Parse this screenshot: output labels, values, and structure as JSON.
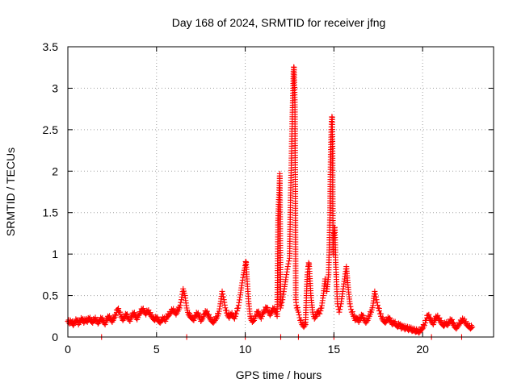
{
  "chart_data": {
    "type": "scatter",
    "title": "Day 168 of 2024, SRMTID for receiver jfng",
    "xlabel": "GPS time / hours",
    "ylabel": "SRMTID / TECUs",
    "xlim": [
      0,
      24
    ],
    "ylim": [
      0,
      3.5
    ],
    "xticks": [
      0,
      5,
      10,
      15,
      20
    ],
    "xtick_labels": [
      "0",
      "5",
      "10",
      "15",
      "20"
    ],
    "yticks": [
      0,
      0.5,
      1,
      1.5,
      2,
      2.5,
      3,
      3.5
    ],
    "ytick_labels": [
      "0",
      "0.5",
      "1",
      "1.5",
      "2",
      "2.5",
      "3",
      "3.5"
    ],
    "grid": true,
    "marker": "plus",
    "color": "#ff0000",
    "series": [
      {
        "name": "SRMTID",
        "points": [
          [
            0.0,
            0.19
          ],
          [
            0.1,
            0.16
          ],
          [
            0.2,
            0.18
          ],
          [
            0.3,
            0.14
          ],
          [
            0.4,
            0.17
          ],
          [
            0.5,
            0.2
          ],
          [
            0.6,
            0.15
          ],
          [
            0.7,
            0.19
          ],
          [
            0.8,
            0.21
          ],
          [
            0.9,
            0.17
          ],
          [
            1.0,
            0.2
          ],
          [
            1.1,
            0.18
          ],
          [
            1.2,
            0.22
          ],
          [
            1.3,
            0.19
          ],
          [
            1.4,
            0.17
          ],
          [
            1.5,
            0.21
          ],
          [
            1.6,
            0.2
          ],
          [
            1.7,
            0.16
          ],
          [
            1.8,
            0.19
          ],
          [
            1.9,
            0.22
          ],
          [
            2.0,
            0.18
          ],
          [
            2.1,
            0.15
          ],
          [
            2.2,
            0.2
          ],
          [
            2.3,
            0.24
          ],
          [
            2.4,
            0.21
          ],
          [
            2.5,
            0.18
          ],
          [
            2.6,
            0.22
          ],
          [
            2.7,
            0.26
          ],
          [
            2.8,
            0.33
          ],
          [
            2.9,
            0.3
          ],
          [
            3.0,
            0.24
          ],
          [
            3.1,
            0.2
          ],
          [
            3.2,
            0.23
          ],
          [
            3.3,
            0.27
          ],
          [
            3.4,
            0.22
          ],
          [
            3.5,
            0.19
          ],
          [
            3.6,
            0.24
          ],
          [
            3.7,
            0.28
          ],
          [
            3.8,
            0.25
          ],
          [
            3.9,
            0.21
          ],
          [
            4.0,
            0.26
          ],
          [
            4.1,
            0.29
          ],
          [
            4.2,
            0.33
          ],
          [
            4.3,
            0.3
          ],
          [
            4.4,
            0.27
          ],
          [
            4.5,
            0.31
          ],
          [
            4.6,
            0.28
          ],
          [
            4.7,
            0.25
          ],
          [
            4.8,
            0.22
          ],
          [
            4.9,
            0.2
          ],
          [
            5.0,
            0.23
          ],
          [
            5.1,
            0.19
          ],
          [
            5.2,
            0.17
          ],
          [
            5.3,
            0.2
          ],
          [
            5.4,
            0.22
          ],
          [
            5.5,
            0.19
          ],
          [
            5.6,
            0.24
          ],
          [
            5.7,
            0.26
          ],
          [
            5.8,
            0.29
          ],
          [
            5.9,
            0.32
          ],
          [
            6.0,
            0.3
          ],
          [
            6.1,
            0.27
          ],
          [
            6.2,
            0.31
          ],
          [
            6.3,
            0.35
          ],
          [
            6.4,
            0.45
          ],
          [
            6.5,
            0.58
          ],
          [
            6.6,
            0.5
          ],
          [
            6.7,
            0.35
          ],
          [
            6.8,
            0.27
          ],
          [
            6.9,
            0.24
          ],
          [
            7.0,
            0.22
          ],
          [
            7.1,
            0.2
          ],
          [
            7.2,
            0.25
          ],
          [
            7.3,
            0.28
          ],
          [
            7.4,
            0.24
          ],
          [
            7.5,
            0.19
          ],
          [
            7.6,
            0.22
          ],
          [
            7.7,
            0.27
          ],
          [
            7.8,
            0.3
          ],
          [
            7.9,
            0.26
          ],
          [
            8.0,
            0.22
          ],
          [
            8.1,
            0.19
          ],
          [
            8.2,
            0.17
          ],
          [
            8.3,
            0.2
          ],
          [
            8.4,
            0.23
          ],
          [
            8.5,
            0.28
          ],
          [
            8.6,
            0.4
          ],
          [
            8.7,
            0.55
          ],
          [
            8.8,
            0.45
          ],
          [
            8.9,
            0.32
          ],
          [
            9.0,
            0.26
          ],
          [
            9.1,
            0.23
          ],
          [
            9.2,
            0.27
          ],
          [
            9.3,
            0.25
          ],
          [
            9.4,
            0.22
          ],
          [
            9.5,
            0.28
          ],
          [
            9.6,
            0.35
          ],
          [
            9.7,
            0.48
          ],
          [
            9.8,
            0.62
          ],
          [
            9.9,
            0.75
          ],
          [
            10.0,
            0.86
          ],
          [
            10.05,
            0.9
          ],
          [
            10.1,
            0.7
          ],
          [
            10.2,
            0.4
          ],
          [
            10.3,
            0.22
          ],
          [
            10.4,
            0.18
          ],
          [
            10.5,
            0.2
          ],
          [
            10.6,
            0.25
          ],
          [
            10.7,
            0.3
          ],
          [
            10.8,
            0.26
          ],
          [
            10.9,
            0.22
          ],
          [
            11.0,
            0.28
          ],
          [
            11.1,
            0.31
          ],
          [
            11.2,
            0.35
          ],
          [
            11.3,
            0.3
          ],
          [
            11.4,
            0.26
          ],
          [
            11.5,
            0.3
          ],
          [
            11.6,
            0.34
          ],
          [
            11.7,
            0.3
          ],
          [
            11.8,
            0.25
          ],
          [
            11.85,
            1.38
          ],
          [
            11.88,
            1.6
          ],
          [
            11.92,
            1.8
          ],
          [
            11.95,
            1.97
          ],
          [
            12.0,
            0.35
          ],
          [
            12.1,
            0.45
          ],
          [
            12.2,
            0.58
          ],
          [
            12.3,
            0.72
          ],
          [
            12.4,
            0.85
          ],
          [
            12.5,
            0.95
          ],
          [
            12.55,
            1.62
          ],
          [
            12.6,
            2.1
          ],
          [
            12.62,
            2.33
          ],
          [
            12.65,
            2.6
          ],
          [
            12.68,
            2.85
          ],
          [
            12.7,
            3.0
          ],
          [
            12.72,
            3.2
          ],
          [
            12.75,
            3.25
          ],
          [
            12.8,
            2.8
          ],
          [
            12.85,
            0.45
          ],
          [
            12.9,
            0.35
          ],
          [
            13.0,
            0.3
          ],
          [
            13.1,
            0.2
          ],
          [
            13.2,
            0.15
          ],
          [
            13.3,
            0.12
          ],
          [
            13.4,
            0.15
          ],
          [
            13.45,
            0.5
          ],
          [
            13.5,
            0.75
          ],
          [
            13.55,
            0.85
          ],
          [
            13.6,
            0.88
          ],
          [
            13.7,
            0.5
          ],
          [
            13.8,
            0.3
          ],
          [
            13.9,
            0.22
          ],
          [
            14.0,
            0.25
          ],
          [
            14.1,
            0.3
          ],
          [
            14.2,
            0.28
          ],
          [
            14.3,
            0.35
          ],
          [
            14.4,
            0.5
          ],
          [
            14.5,
            0.7
          ],
          [
            14.6,
            0.55
          ],
          [
            14.7,
            0.75
          ],
          [
            14.75,
            1.2
          ],
          [
            14.78,
            1.5
          ],
          [
            14.8,
            1.9
          ],
          [
            14.82,
            2.2
          ],
          [
            14.85,
            2.5
          ],
          [
            14.87,
            2.6
          ],
          [
            14.9,
            2.65
          ],
          [
            14.92,
            2.3
          ],
          [
            14.95,
            1.0
          ],
          [
            15.0,
            1.25
          ],
          [
            15.05,
            1.32
          ],
          [
            15.1,
            0.9
          ],
          [
            15.2,
            0.4
          ],
          [
            15.3,
            0.3
          ],
          [
            15.4,
            0.4
          ],
          [
            15.5,
            0.55
          ],
          [
            15.6,
            0.7
          ],
          [
            15.7,
            0.85
          ],
          [
            15.8,
            0.6
          ],
          [
            15.9,
            0.4
          ],
          [
            16.0,
            0.3
          ],
          [
            16.1,
            0.25
          ],
          [
            16.2,
            0.2
          ],
          [
            16.3,
            0.22
          ],
          [
            16.4,
            0.18
          ],
          [
            16.5,
            0.22
          ],
          [
            16.6,
            0.26
          ],
          [
            16.7,
            0.2
          ],
          [
            16.8,
            0.17
          ],
          [
            16.9,
            0.2
          ],
          [
            17.0,
            0.25
          ],
          [
            17.1,
            0.3
          ],
          [
            17.2,
            0.38
          ],
          [
            17.3,
            0.55
          ],
          [
            17.4,
            0.45
          ],
          [
            17.5,
            0.35
          ],
          [
            17.6,
            0.28
          ],
          [
            17.7,
            0.22
          ],
          [
            17.8,
            0.19
          ],
          [
            17.9,
            0.17
          ],
          [
            18.0,
            0.2
          ],
          [
            18.1,
            0.22
          ],
          [
            18.2,
            0.18
          ],
          [
            18.3,
            0.15
          ],
          [
            18.4,
            0.17
          ],
          [
            18.5,
            0.14
          ],
          [
            18.6,
            0.12
          ],
          [
            18.7,
            0.15
          ],
          [
            18.8,
            0.1
          ],
          [
            18.9,
            0.12
          ],
          [
            19.0,
            0.09
          ],
          [
            19.1,
            0.11
          ],
          [
            19.2,
            0.08
          ],
          [
            19.3,
            0.1
          ],
          [
            19.4,
            0.07
          ],
          [
            19.5,
            0.08
          ],
          [
            19.6,
            0.06
          ],
          [
            19.7,
            0.07
          ],
          [
            19.8,
            0.05
          ],
          [
            19.9,
            0.08
          ],
          [
            20.0,
            0.1
          ],
          [
            20.1,
            0.14
          ],
          [
            20.2,
            0.2
          ],
          [
            20.3,
            0.26
          ],
          [
            20.4,
            0.22
          ],
          [
            20.5,
            0.18
          ],
          [
            20.6,
            0.15
          ],
          [
            20.7,
            0.2
          ],
          [
            20.8,
            0.24
          ],
          [
            20.9,
            0.22
          ],
          [
            21.0,
            0.18
          ],
          [
            21.1,
            0.15
          ],
          [
            21.2,
            0.13
          ],
          [
            21.3,
            0.16
          ],
          [
            21.4,
            0.14
          ],
          [
            21.5,
            0.17
          ],
          [
            21.6,
            0.2
          ],
          [
            21.7,
            0.16
          ],
          [
            21.8,
            0.12
          ],
          [
            21.9,
            0.1
          ],
          [
            22.0,
            0.13
          ],
          [
            22.1,
            0.16
          ],
          [
            22.2,
            0.19
          ],
          [
            22.3,
            0.2
          ],
          [
            22.4,
            0.17
          ],
          [
            22.5,
            0.14
          ],
          [
            22.6,
            0.12
          ],
          [
            22.7,
            0.1
          ],
          [
            22.8,
            0.12
          ]
        ]
      }
    ],
    "zero_points": [
      1.9,
      6.7,
      10.0,
      12.0,
      13.0,
      15.0,
      20.5,
      22.2
    ]
  }
}
